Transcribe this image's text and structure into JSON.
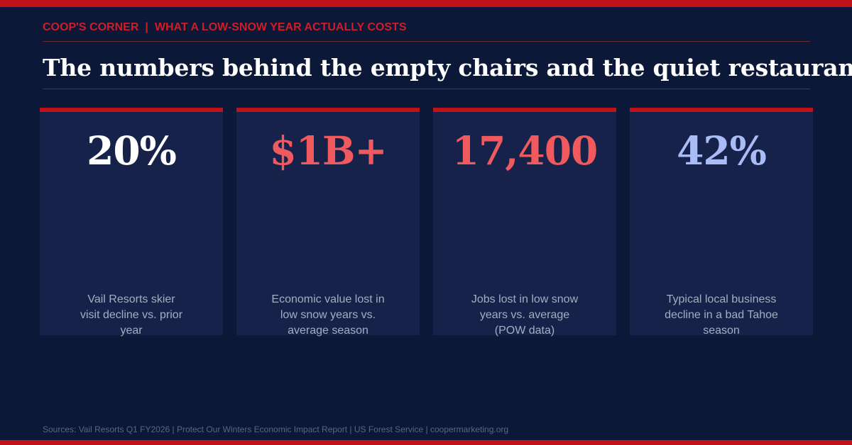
{
  "kicker": {
    "series": "COOP'S CORNER",
    "separator": "|",
    "topic": "WHAT A LOW-SNOW YEAR ACTUALLY COSTS"
  },
  "headline": "The numbers behind the empty chairs and the quiet restaurants.",
  "stats": [
    {
      "value": "20%",
      "color": "#ffffff",
      "description": "Vail Resorts skier visit decline vs. prior year"
    },
    {
      "value": "$1B+",
      "color": "#f05a5e",
      "description": "Economic value lost in low snow years vs. average season"
    },
    {
      "value": "17,400",
      "color": "#f05a5e",
      "description": "Jobs lost in low snow years vs. average (POW data)"
    },
    {
      "value": "42%",
      "color": "#a9bcf5",
      "description": "Typical local business decline in a bad Tahoe season"
    }
  ],
  "sources": "Sources: Vail Resorts Q1 FY2026 | Protect Our Winters Economic Impact Report | US Forest Service | coopermarketing.org",
  "colors": {
    "background": "#0c1838",
    "card": "#16224a",
    "accent_red": "#c1121a"
  }
}
